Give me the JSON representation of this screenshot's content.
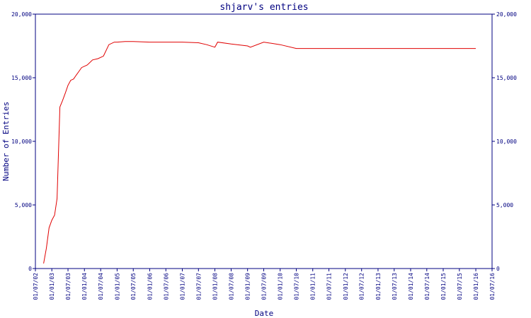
{
  "chart_data": {
    "type": "line",
    "title": "shjarv's entries",
    "xlabel": "Date",
    "ylabel": "Number of Entries",
    "x_tick_labels": [
      "01/07/02",
      "01/01/03",
      "01/07/03",
      "01/01/04",
      "01/07/04",
      "01/01/05",
      "01/07/05",
      "01/01/06",
      "01/07/06",
      "01/01/07",
      "01/07/07",
      "01/01/08",
      "01/07/08",
      "01/01/09",
      "01/07/09",
      "01/01/10",
      "01/07/10",
      "01/01/11",
      "01/07/11",
      "01/01/12",
      "01/07/12",
      "01/01/13",
      "01/07/13",
      "01/01/14",
      "01/07/14",
      "01/01/15",
      "01/07/15",
      "01/01/16",
      "01/07/16"
    ],
    "y_ticks": [
      0,
      5000,
      10000,
      15000,
      20000
    ],
    "y_tick_labels": [
      "0",
      "5,000",
      "10,000",
      "15,000",
      "20,000"
    ],
    "ylim": [
      0,
      20000
    ],
    "grid": false,
    "line_color": "#e00000",
    "axis_color": "#000080",
    "series": [
      {
        "name": "",
        "x": [
          "2002-10-01",
          "2002-11-01",
          "2002-12-01",
          "2003-01-01",
          "2003-02-01",
          "2003-03-01",
          "2003-04-01",
          "2003-05-01",
          "2003-06-01",
          "2003-07-01",
          "2003-08-01",
          "2003-09-01",
          "2003-10-01",
          "2003-11-01",
          "2003-12-01",
          "2004-02-01",
          "2004-04-01",
          "2004-06-01",
          "2004-08-01",
          "2004-10-01",
          "2004-12-01",
          "2005-01-01",
          "2005-04-01",
          "2005-07-01",
          "2006-01-01",
          "2006-07-01",
          "2007-01-01",
          "2007-07-01",
          "2007-10-01",
          "2008-01-01",
          "2008-02-01",
          "2008-07-01",
          "2009-01-01",
          "2009-02-01",
          "2009-07-01",
          "2010-01-01",
          "2010-07-01",
          "2013-01-01",
          "2016-01-01"
        ],
        "y": [
          400,
          1600,
          3200,
          3800,
          4200,
          5500,
          12700,
          13200,
          13800,
          14400,
          14800,
          14900,
          15200,
          15500,
          15800,
          16000,
          16400,
          16500,
          16700,
          17600,
          17800,
          17800,
          17850,
          17850,
          17800,
          17800,
          17800,
          17750,
          17600,
          17400,
          17800,
          17650,
          17500,
          17400,
          17800,
          17600,
          17300,
          17300,
          17300
        ]
      }
    ]
  }
}
